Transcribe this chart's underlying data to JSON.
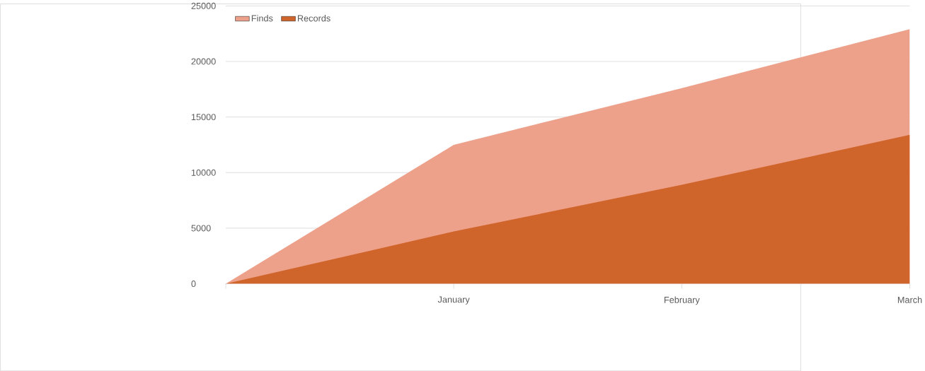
{
  "chart_data": {
    "type": "area",
    "categories": [
      null,
      "January",
      "February",
      "March"
    ],
    "series": [
      {
        "name": "Finds",
        "color": "#eda08a",
        "values": [
          0,
          12500,
          17600,
          22900
        ]
      },
      {
        "name": "Records",
        "color": "#d0652b",
        "values": [
          0,
          4700,
          8900,
          13400
        ]
      }
    ],
    "ylim": [
      0,
      25000
    ],
    "yticks": [
      0,
      5000,
      10000,
      15000,
      20000,
      25000
    ],
    "grid": "y",
    "legend": "top left"
  }
}
